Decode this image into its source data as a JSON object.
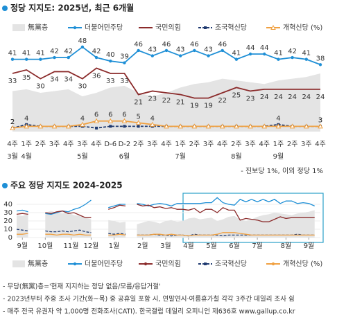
{
  "chart_data": [
    {
      "type": "line",
      "title": "정당 지지도: 2025년, 최근 6개월",
      "categories": [
        "4주",
        "1주",
        "2주",
        "3주",
        "4주",
        "3주",
        "4주",
        "D-6",
        "D-2",
        "2주",
        "3주",
        "4주",
        "1주",
        "2주",
        "3주",
        "4주",
        "2주",
        "3주",
        "4주",
        "1주",
        "2주",
        "3주",
        "4주"
      ],
      "month_labels": [
        "3월",
        "4월",
        null,
        null,
        null,
        "5월",
        null,
        null,
        "6월",
        null,
        null,
        null,
        "7월",
        null,
        null,
        null,
        "8월",
        null,
        null,
        "9월",
        null,
        null,
        null
      ],
      "ylim": [
        0,
        55
      ],
      "legend": "top",
      "annotation": "- 진보당 1%, 이외 정당 1%",
      "series": [
        {
          "name": "無黨층",
          "color": "#e4e4e4",
          "style": "area",
          "data_labels": false,
          "values": [
            23,
            24,
            22,
            23,
            24,
            20,
            22,
            25,
            26,
            22,
            20,
            22,
            25,
            27,
            28,
            30,
            29,
            28,
            27,
            29,
            30,
            31,
            33
          ]
        },
        {
          "name": "더불어민주당",
          "color": "#1e8fd6",
          "style": "line",
          "marker": "circle",
          "data_labels": true,
          "label_position": "above",
          "values": [
            41,
            41,
            41,
            42,
            42,
            48,
            42,
            40,
            39,
            46,
            43,
            46,
            43,
            46,
            43,
            46,
            41,
            44,
            44,
            41,
            42,
            41,
            38
          ]
        },
        {
          "name": "국민의힘",
          "color": "#8b2b2b",
          "style": "line",
          "marker": "none",
          "data_labels": true,
          "label_position": "below",
          "values": [
            33,
            35,
            30,
            34,
            34,
            30,
            36,
            33,
            33,
            21,
            23,
            22,
            21,
            19,
            19,
            22,
            25,
            23,
            24,
            24,
            24,
            24,
            24
          ]
        },
        {
          "name": "조국혁신당",
          "color": "#1f3a70",
          "style": "dashed",
          "marker": "square",
          "data_labels": true,
          "label_position": "above",
          "values": [
            2,
            4,
            3,
            3,
            3,
            3,
            2,
            3,
            3,
            3,
            3,
            3,
            3,
            3,
            3,
            3,
            3,
            3,
            3,
            4,
            3,
            3,
            3
          ],
          "value_labels": [
            "2",
            "4",
            null,
            null,
            null,
            null,
            null,
            null,
            null,
            null,
            null,
            null,
            null,
            null,
            null,
            null,
            null,
            null,
            null,
            "4",
            null,
            null,
            "3"
          ]
        },
        {
          "name": "개혁신당 (%)",
          "color": "#f0a040",
          "style": "line",
          "marker": "triangle",
          "data_labels": true,
          "label_position": "above",
          "values": [
            2,
            3,
            3,
            3,
            3,
            4,
            6,
            6,
            6,
            5,
            4,
            3,
            3,
            3,
            3,
            3,
            3,
            3,
            3,
            3,
            3,
            3,
            3
          ],
          "value_labels": [
            "2",
            null,
            null,
            null,
            null,
            "4",
            "6",
            "6",
            "6",
            "5",
            "4",
            null,
            null,
            null,
            null,
            null,
            null,
            null,
            null,
            null,
            null,
            null,
            "3"
          ]
        }
      ]
    },
    {
      "type": "line",
      "title": "주요 정당 지지도 2024-2025",
      "x": [
        0,
        1,
        2,
        3,
        4,
        5,
        6,
        7,
        8,
        9,
        10,
        11,
        12,
        13,
        14,
        15,
        16,
        17,
        18,
        19,
        20,
        21,
        22,
        23,
        24,
        25,
        26,
        27,
        28,
        29,
        30,
        31,
        32,
        33,
        34,
        35,
        36,
        37,
        38,
        39,
        40,
        41,
        42,
        43,
        44,
        45,
        46,
        47,
        48,
        49,
        50,
        51,
        52
      ],
      "xlim": [
        0,
        53
      ],
      "xticks": [
        {
          "value": 1,
          "label": "9월"
        },
        {
          "value": 5,
          "label": "10월"
        },
        {
          "value": 9.5,
          "label": "11월"
        },
        {
          "value": 13,
          "label": "12월"
        },
        {
          "value": 17,
          "label": "1월"
        },
        {
          "value": 22,
          "label": "2월"
        },
        {
          "value": 26,
          "label": "3월"
        },
        {
          "value": 30,
          "label": "4월"
        },
        {
          "value": 34,
          "label": "5월"
        },
        {
          "value": 38,
          "label": "6월"
        },
        {
          "value": 42,
          "label": "7월"
        },
        {
          "value": 47,
          "label": "8월"
        },
        {
          "value": 51,
          "label": "9월"
        }
      ],
      "ylim": [
        0,
        45
      ],
      "yticks": [
        0,
        10,
        20,
        30,
        40
      ],
      "grid": true,
      "legend": "bottom",
      "series": [
        {
          "name": "無黨층",
          "color": "#e4e4e4",
          "style": "area",
          "values": [
            27,
            26,
            28,
            null,
            null,
            30,
            32,
            30,
            29,
            30,
            27,
            26,
            24,
            22,
            null,
            null,
            21,
            20,
            18,
            19,
            null,
            16,
            18,
            20,
            19,
            17,
            20,
            21,
            19,
            20,
            23,
            24,
            22,
            23,
            24,
            20,
            22,
            25,
            26,
            22,
            20,
            22,
            25,
            27,
            28,
            30,
            29,
            28,
            27,
            29,
            30,
            31,
            33
          ]
        },
        {
          "name": "더불어민주당",
          "color": "#1e8fd6",
          "style": "line",
          "values": [
            32,
            33,
            31,
            null,
            null,
            29,
            28,
            30,
            32,
            31,
            34,
            36,
            40,
            45,
            null,
            null,
            36,
            38,
            40,
            40,
            null,
            41,
            40,
            38,
            40,
            41,
            40,
            38,
            41,
            41,
            41,
            41,
            41,
            42,
            42,
            48,
            42,
            40,
            39,
            46,
            43,
            46,
            43,
            46,
            43,
            46,
            41,
            44,
            44,
            41,
            42,
            41,
            38
          ]
        },
        {
          "name": "국민의힘",
          "color": "#8b2b2b",
          "style": "line",
          "values": [
            28,
            29,
            28,
            null,
            null,
            30,
            29,
            31,
            32,
            29,
            30,
            27,
            24,
            24,
            null,
            null,
            34,
            36,
            39,
            38,
            null,
            40,
            38,
            39,
            36,
            37,
            35,
            36,
            34,
            34,
            33,
            35,
            30,
            34,
            34,
            30,
            36,
            33,
            33,
            21,
            23,
            22,
            21,
            19,
            19,
            22,
            25,
            23,
            24,
            24,
            24,
            24,
            24
          ]
        },
        {
          "name": "조국혁신당",
          "color": "#1f3a70",
          "style": "dashed",
          "values": [
            10,
            9,
            8,
            null,
            null,
            8,
            7,
            7,
            8,
            7,
            8,
            9,
            7,
            6,
            null,
            null,
            5,
            4,
            5,
            4,
            null,
            3,
            3,
            3,
            4,
            3,
            3,
            2,
            3,
            3,
            2,
            4,
            3,
            3,
            3,
            3,
            2,
            3,
            3,
            3,
            3,
            3,
            3,
            3,
            3,
            3,
            3,
            3,
            3,
            4,
            3,
            3,
            3
          ]
        },
        {
          "name": "개혁신당 (%)",
          "color": "#f0a040",
          "style": "line",
          "values": [
            4,
            4,
            5,
            null,
            null,
            4,
            4,
            3,
            4,
            4,
            3,
            4,
            3,
            3,
            null,
            null,
            3,
            3,
            4,
            3,
            null,
            3,
            3,
            3,
            4,
            4,
            3,
            4,
            3,
            3,
            2,
            3,
            3,
            3,
            3,
            4,
            6,
            6,
            6,
            5,
            4,
            3,
            3,
            3,
            3,
            3,
            3,
            3,
            3,
            3,
            3,
            3,
            3
          ]
        }
      ]
    }
  ],
  "notes": [
    "- 무당(無黨)층='현재 지지하는 정당 없음/모름/응답거절'",
    "- 2023년부터 주중 조사 기간(화~목) 중 공휴일 포함 시, 연말연시·여름휴가철 각각 3주간 데일리 조사 쉼",
    "- 매주 전국 유권자 약 1,000명 전화조사(CATI). 한국갤럽 데일리 오피니언 제636호 www.gallup.co.kr"
  ]
}
